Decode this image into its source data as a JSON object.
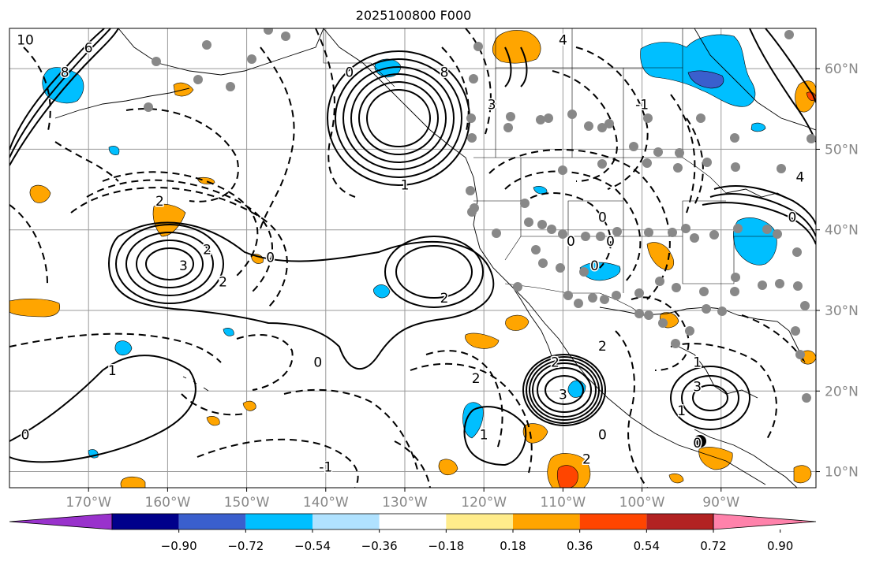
{
  "title": "2025100800 F000",
  "map": {
    "lon_range": [
      -180,
      -78
    ],
    "lat_range": [
      8,
      65
    ],
    "lon_ticks": [
      {
        "value": -170,
        "label": "170°W"
      },
      {
        "value": -160,
        "label": "160°W"
      },
      {
        "value": -150,
        "label": "150°W"
      },
      {
        "value": -140,
        "label": "140°W"
      },
      {
        "value": -130,
        "label": "130°W"
      },
      {
        "value": -120,
        "label": "120°W"
      },
      {
        "value": -110,
        "label": "110°W"
      },
      {
        "value": -100,
        "label": "100°W"
      },
      {
        "value": -90,
        "label": "90°W"
      }
    ],
    "lat_ticks": [
      {
        "value": 60,
        "label": "60°N"
      },
      {
        "value": 50,
        "label": "50°N"
      },
      {
        "value": 40,
        "label": "40°N"
      },
      {
        "value": 30,
        "label": "30°N"
      },
      {
        "value": 20,
        "label": "20°N"
      },
      {
        "value": 10,
        "label": "10°N"
      }
    ],
    "contour_labels": [
      {
        "text": "2",
        "lon": -161,
        "lat": 43
      },
      {
        "text": "3",
        "lon": -158,
        "lat": 35
      },
      {
        "text": "2",
        "lon": -155,
        "lat": 37
      },
      {
        "text": "2",
        "lon": -153,
        "lat": 33
      },
      {
        "text": "0",
        "lon": -147,
        "lat": 36
      },
      {
        "text": "2",
        "lon": -125,
        "lat": 31
      },
      {
        "text": "0",
        "lon": -141,
        "lat": 23
      },
      {
        "text": "1",
        "lon": -167,
        "lat": 22
      },
      {
        "text": "0",
        "lon": -178,
        "lat": 14
      },
      {
        "text": "-1",
        "lon": -140,
        "lat": 10
      },
      {
        "text": "2",
        "lon": -121,
        "lat": 21
      },
      {
        "text": "3",
        "lon": -110,
        "lat": 19
      },
      {
        "text": "1",
        "lon": -120,
        "lat": 14
      },
      {
        "text": "2",
        "lon": -107,
        "lat": 11
      },
      {
        "text": "0",
        "lon": -105,
        "lat": 14
      },
      {
        "text": "3",
        "lon": -93,
        "lat": 20
      },
      {
        "text": "1",
        "lon": -95,
        "lat": 17
      },
      {
        "text": "0",
        "lon": -93,
        "lat": 13
      },
      {
        "text": "0",
        "lon": -105,
        "lat": 41
      },
      {
        "text": "0",
        "lon": -109,
        "lat": 38
      },
      {
        "text": "0",
        "lon": -104,
        "lat": 38
      },
      {
        "text": "0",
        "lon": -106,
        "lat": 35
      },
      {
        "text": "2",
        "lon": -105,
        "lat": 25
      },
      {
        "text": "3",
        "lon": -119,
        "lat": 55
      },
      {
        "text": "8",
        "lon": -125,
        "lat": 59
      },
      {
        "text": "4",
        "lon": -110,
        "lat": 63
      },
      {
        "text": "-1",
        "lon": -100,
        "lat": 55
      },
      {
        "text": "4",
        "lon": -80,
        "lat": 46
      },
      {
        "text": "0",
        "lon": -81,
        "lat": 41
      },
      {
        "text": "6",
        "lon": -170,
        "lat": 62
      },
      {
        "text": "8",
        "lon": -173,
        "lat": 59
      },
      {
        "text": "10",
        "lon": -178,
        "lat": 63
      },
      {
        "text": "1",
        "lon": -130,
        "lat": 45
      },
      {
        "text": "0",
        "lon": -137,
        "lat": 59
      },
      {
        "text": "1",
        "lon": -93,
        "lat": 23
      },
      {
        "text": "2",
        "lon": -111,
        "lat": 23
      }
    ]
  },
  "colorbar": {
    "colors": [
      "#9932cc",
      "#00008b",
      "#3a5fcd",
      "#00bfff",
      "#b0e2ff",
      "#ffffff",
      "#ffec8b",
      "#ffa500",
      "#ff4500",
      "#b22222",
      "#ff82ab"
    ],
    "tick_labels": [
      "−0.90",
      "−0.72",
      "−0.54",
      "−0.36",
      "−0.18",
      "0.18",
      "0.36",
      "0.54",
      "0.72",
      "0.90"
    ]
  }
}
